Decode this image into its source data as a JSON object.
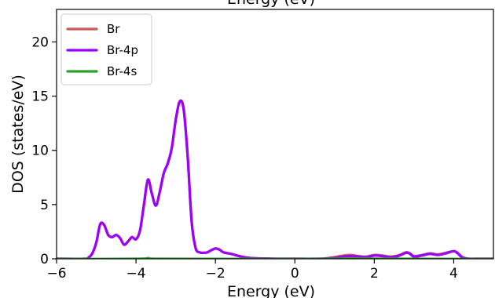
{
  "chart_data": {
    "type": "line",
    "title": "",
    "top_label": "Energy (eV)",
    "xlabel": "Energy (eV)",
    "ylabel": "DOS (states/eV)",
    "xlim": [
      -6,
      5
    ],
    "ylim": [
      0,
      23
    ],
    "xticks": [
      -6,
      -4,
      -2,
      0,
      2,
      4
    ],
    "xtick_labels": [
      "−6",
      "−4",
      "−2",
      "0",
      "2",
      "4"
    ],
    "yticks": [
      0,
      5,
      10,
      15,
      20
    ],
    "ytick_labels": [
      "0",
      "5",
      "10",
      "15",
      "20"
    ],
    "grid": false,
    "legend_position": "top-left",
    "series": [
      {
        "name": "Br",
        "color": "#c85a5a",
        "x": [
          -6.0,
          -5.3,
          -5.2,
          -5.1,
          -5.0,
          -4.9,
          -4.8,
          -4.7,
          -4.6,
          -4.5,
          -4.4,
          -4.3,
          -4.2,
          -4.1,
          -4.0,
          -3.9,
          -3.8,
          -3.7,
          -3.6,
          -3.5,
          -3.4,
          -3.3,
          -3.2,
          -3.1,
          -3.0,
          -2.9,
          -2.8,
          -2.7,
          -2.6,
          -2.5,
          -2.4,
          -2.3,
          -2.2,
          -2.1,
          -2.0,
          -1.9,
          -1.8,
          -1.6,
          -1.4,
          -1.2,
          -1.0,
          -0.7,
          -0.4,
          0.0,
          0.5,
          0.8,
          1.0,
          1.2,
          1.4,
          1.6,
          1.8,
          2.0,
          2.2,
          2.4,
          2.6,
          2.8,
          2.9,
          3.0,
          3.2,
          3.4,
          3.6,
          3.8,
          4.0,
          4.1,
          4.2,
          4.3,
          4.4,
          4.6,
          5.0
        ],
        "y": [
          0.0,
          0.0,
          0.1,
          0.5,
          1.5,
          3.2,
          3.1,
          2.2,
          2.0,
          2.2,
          1.9,
          1.3,
          1.6,
          2.0,
          1.8,
          2.6,
          5.0,
          7.3,
          6.0,
          4.9,
          6.2,
          7.9,
          8.8,
          10.2,
          12.8,
          14.5,
          13.8,
          9.5,
          3.5,
          1.0,
          0.6,
          0.55,
          0.6,
          0.8,
          0.95,
          0.85,
          0.6,
          0.45,
          0.25,
          0.1,
          0.05,
          0.02,
          0.0,
          0.0,
          0.0,
          0.05,
          0.15,
          0.28,
          0.35,
          0.25,
          0.2,
          0.35,
          0.3,
          0.2,
          0.3,
          0.6,
          0.5,
          0.25,
          0.35,
          0.5,
          0.4,
          0.55,
          0.7,
          0.55,
          0.2,
          0.05,
          0.0,
          0.0,
          0.0
        ]
      },
      {
        "name": "Br-4p",
        "color": "#9b00ff",
        "x": [
          -6.0,
          -5.3,
          -5.2,
          -5.1,
          -5.0,
          -4.9,
          -4.8,
          -4.7,
          -4.6,
          -4.5,
          -4.4,
          -4.3,
          -4.2,
          -4.1,
          -4.0,
          -3.9,
          -3.8,
          -3.7,
          -3.6,
          -3.5,
          -3.4,
          -3.3,
          -3.2,
          -3.1,
          -3.0,
          -2.9,
          -2.8,
          -2.7,
          -2.6,
          -2.5,
          -2.4,
          -2.3,
          -2.2,
          -2.1,
          -2.0,
          -1.9,
          -1.8,
          -1.6,
          -1.4,
          -1.2,
          -1.0,
          -0.7,
          -0.4,
          0.0,
          0.5,
          0.8,
          1.0,
          1.2,
          1.4,
          1.6,
          1.8,
          2.0,
          2.2,
          2.4,
          2.6,
          2.8,
          2.9,
          3.0,
          3.2,
          3.4,
          3.6,
          3.8,
          4.0,
          4.1,
          4.2,
          4.3,
          4.4,
          4.6,
          5.0
        ],
        "y": [
          0.0,
          0.0,
          0.1,
          0.5,
          1.5,
          3.2,
          3.1,
          2.2,
          2.0,
          2.2,
          1.9,
          1.3,
          1.6,
          2.0,
          1.8,
          2.6,
          5.0,
          7.3,
          6.0,
          4.9,
          6.2,
          7.9,
          8.8,
          10.2,
          12.8,
          14.5,
          13.8,
          9.5,
          3.5,
          1.0,
          0.6,
          0.55,
          0.6,
          0.8,
          0.95,
          0.85,
          0.6,
          0.45,
          0.25,
          0.1,
          0.05,
          0.02,
          0.0,
          0.0,
          0.0,
          0.02,
          0.08,
          0.18,
          0.25,
          0.2,
          0.15,
          0.3,
          0.25,
          0.15,
          0.25,
          0.55,
          0.45,
          0.2,
          0.3,
          0.45,
          0.35,
          0.5,
          0.7,
          0.5,
          0.15,
          0.03,
          0.0,
          0.0,
          0.0
        ]
      },
      {
        "name": "Br-4s",
        "color": "#2ca02c",
        "x": [
          -6.0,
          -4.0,
          -3.7,
          -3.5,
          -2.0,
          0.0,
          1.0,
          1.4,
          2.0,
          5.0
        ],
        "y": [
          0.0,
          0.02,
          0.08,
          0.02,
          0.01,
          0.0,
          0.01,
          0.06,
          0.03,
          0.0
        ]
      }
    ]
  }
}
